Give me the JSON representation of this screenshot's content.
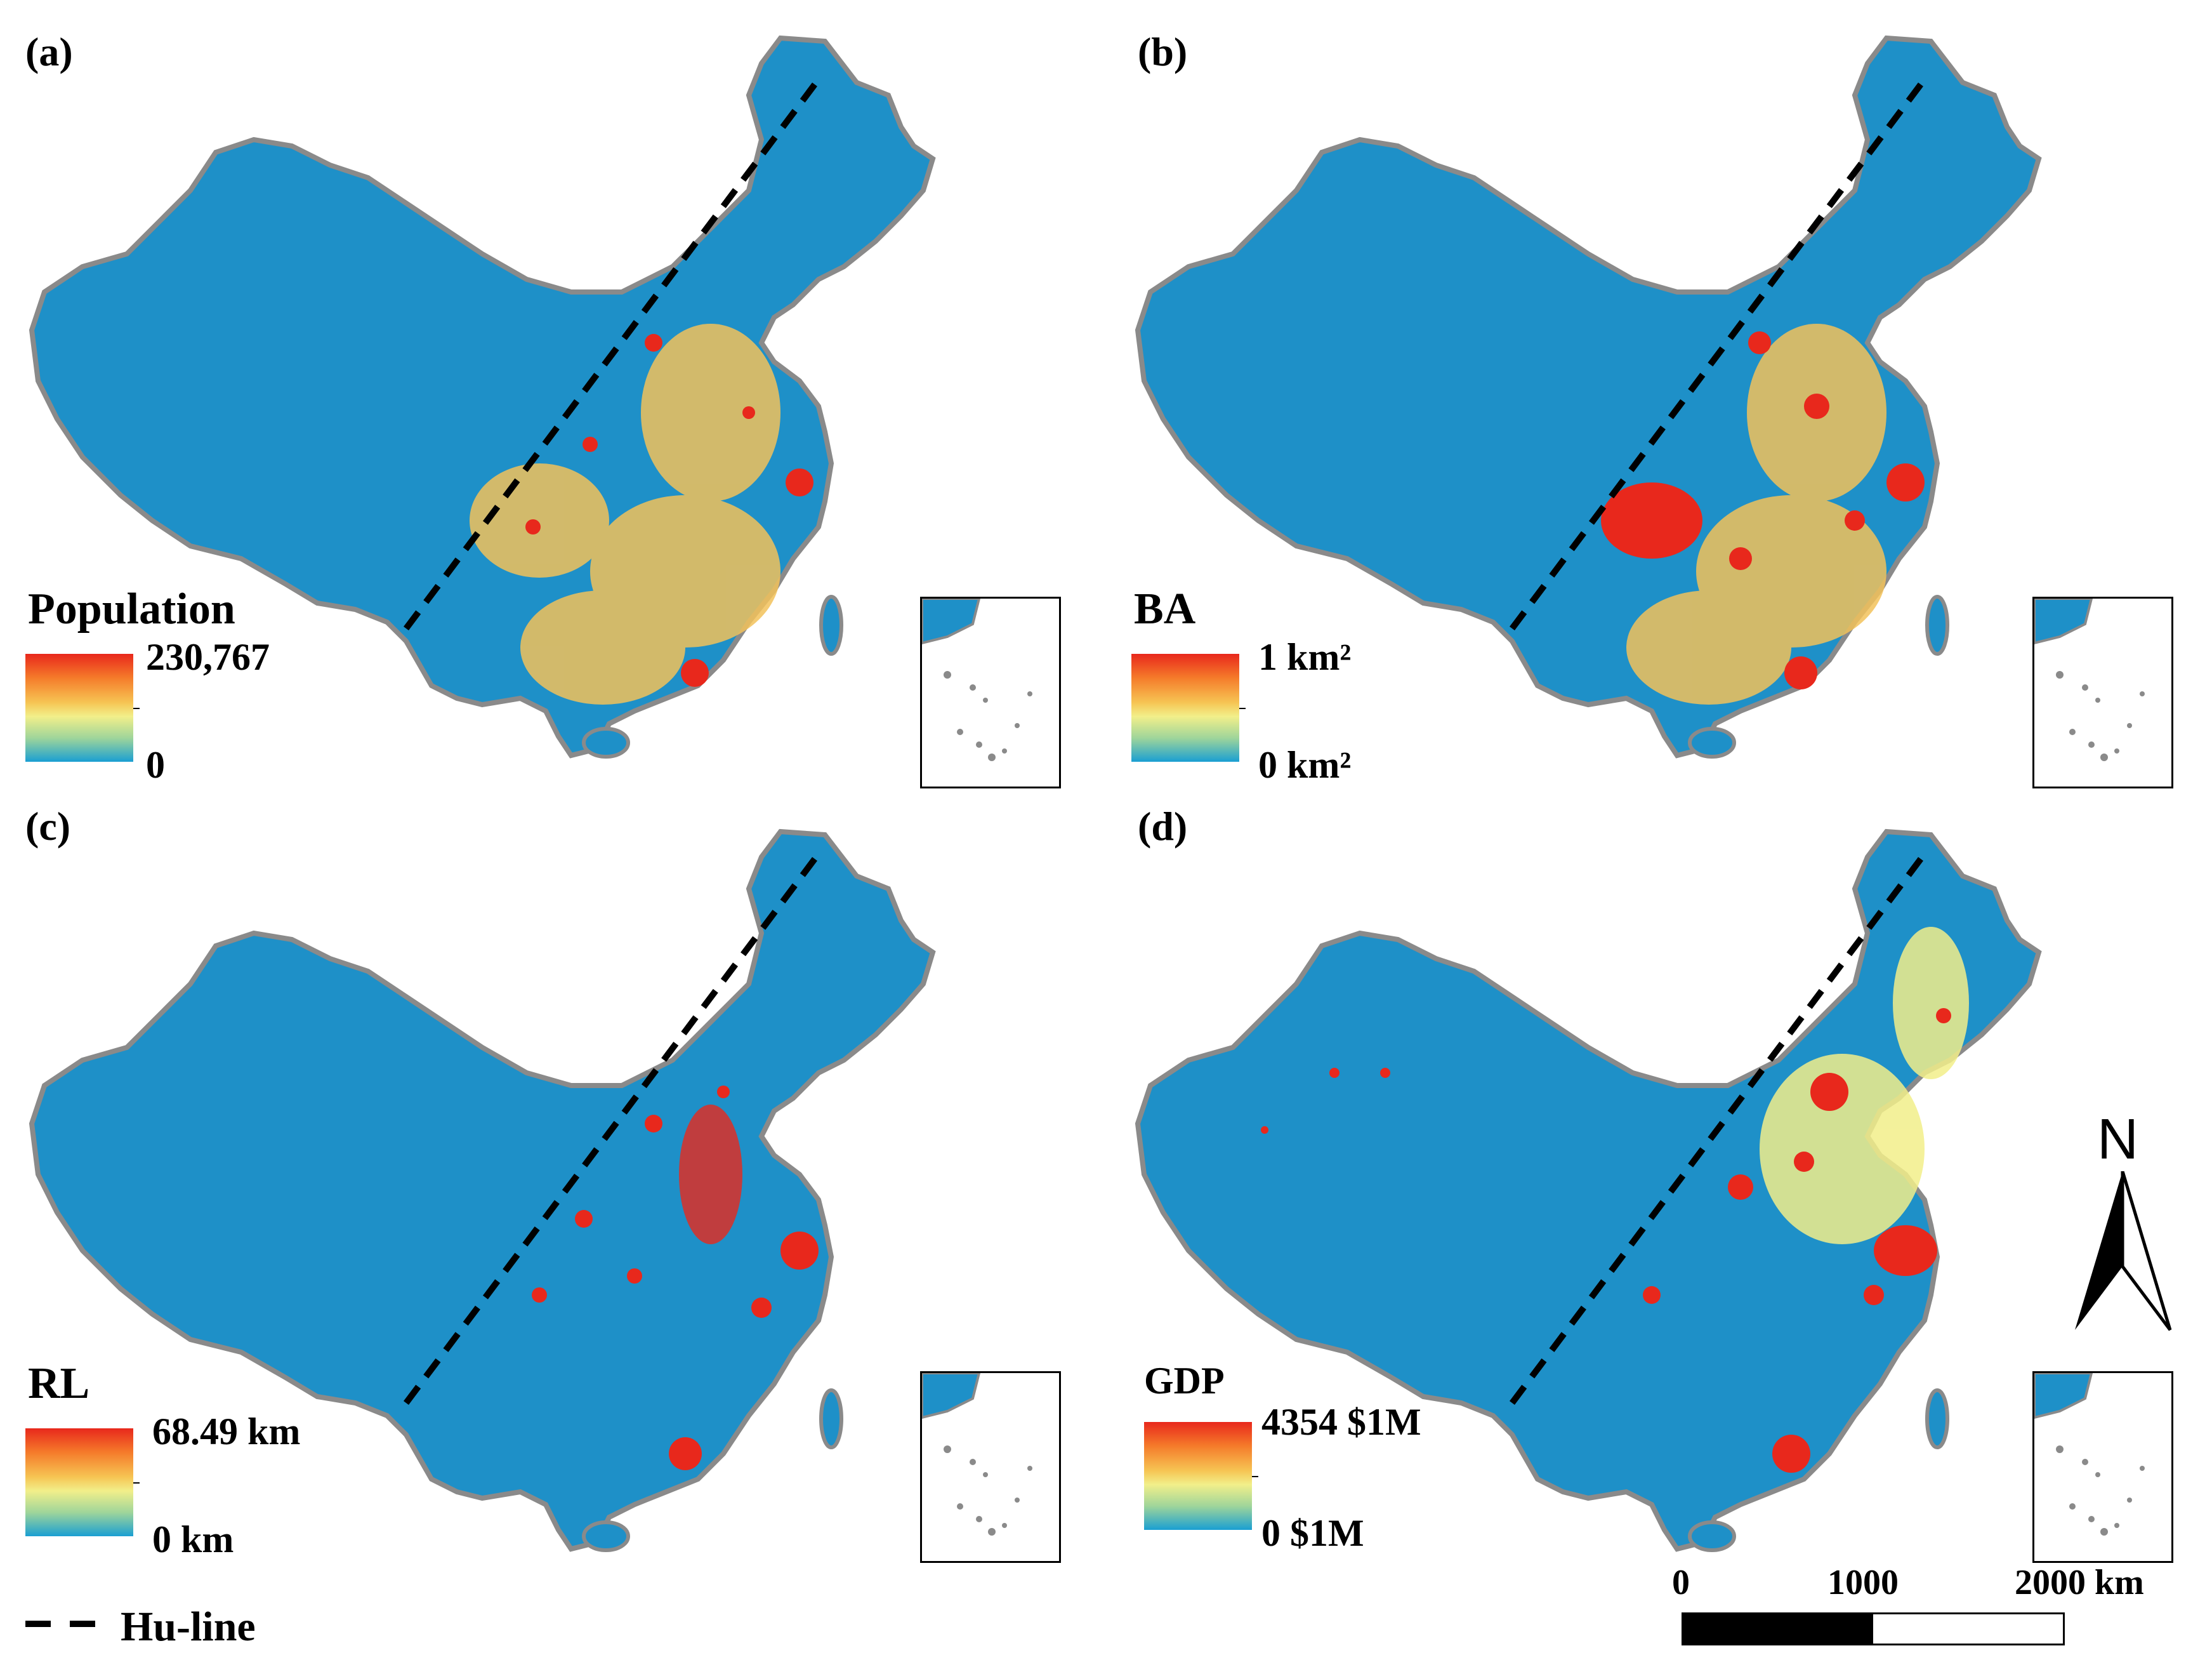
{
  "panels": [
    {
      "label": "(a)",
      "legend_title": "Population",
      "legend_max": "230,767",
      "legend_min": "0"
    },
    {
      "label": "(b)",
      "legend_title": "BA",
      "legend_max": "1  km²",
      "legend_min": "0  km²"
    },
    {
      "label": "(c)",
      "legend_title": "RL",
      "legend_max": "68.49 km",
      "legend_min": "0 km"
    },
    {
      "label": "(d)",
      "legend_title": "GDP",
      "legend_max": "4354 $1M",
      "legend_min": "0 $1M"
    }
  ],
  "hu_line_label": "Hu-line",
  "scale_bar": {
    "labels": [
      "0",
      "1000",
      "2000 km"
    ]
  },
  "north_arrow": "N",
  "colors": {
    "base": "#1e90c8",
    "border": "#8a8a8a",
    "low": "#1a9fd2",
    "mid": "#f2ef8a",
    "high": "#e8281c",
    "hu_line": "#000000"
  }
}
